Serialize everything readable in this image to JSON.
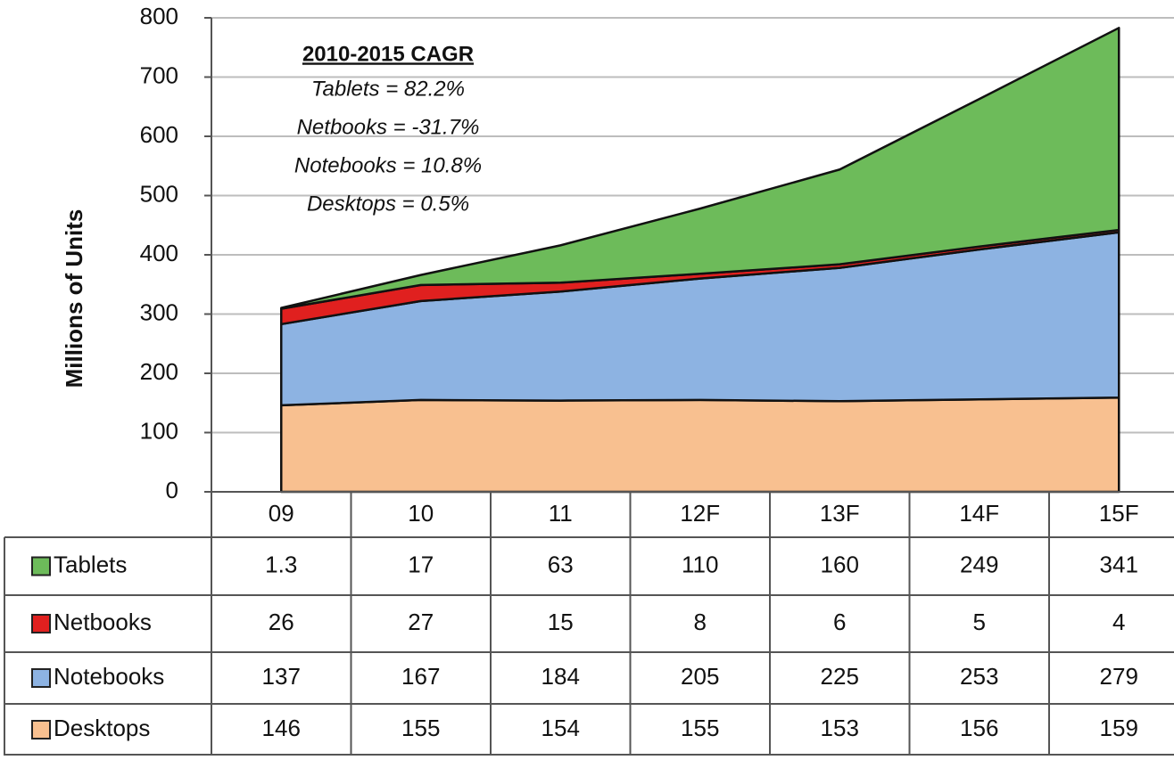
{
  "chart_data": {
    "type": "stacked_area",
    "y_label": "Millions of Units",
    "categories": [
      "09",
      "10",
      "11",
      "12F",
      "13F",
      "14F",
      "15F"
    ],
    "series": [
      {
        "name": "Tablets",
        "color": "#6dbb5a",
        "values": [
          1.3,
          17,
          63,
          110,
          160,
          249,
          341
        ]
      },
      {
        "name": "Netbooks",
        "color": "#e0201f",
        "values": [
          26,
          27,
          15,
          8,
          6,
          5,
          4
        ]
      },
      {
        "name": "Notebooks",
        "color": "#8db3e2",
        "values": [
          137,
          167,
          184,
          205,
          225,
          253,
          279
        ]
      },
      {
        "name": "Desktops",
        "color": "#f8c090",
        "values": [
          146,
          155,
          154,
          155,
          153,
          156,
          159
        ]
      }
    ],
    "ylim": [
      0,
      800
    ],
    "yticks": [
      0,
      100,
      200,
      300,
      400,
      500,
      600,
      700,
      800
    ],
    "grid": true,
    "annotation": {
      "title": "2010-2015 CAGR",
      "lines": [
        "Tablets = 82.2%",
        "Netbooks = -31.7%",
        "Notebooks = 10.8%",
        "Desktops = 0.5%"
      ]
    }
  }
}
